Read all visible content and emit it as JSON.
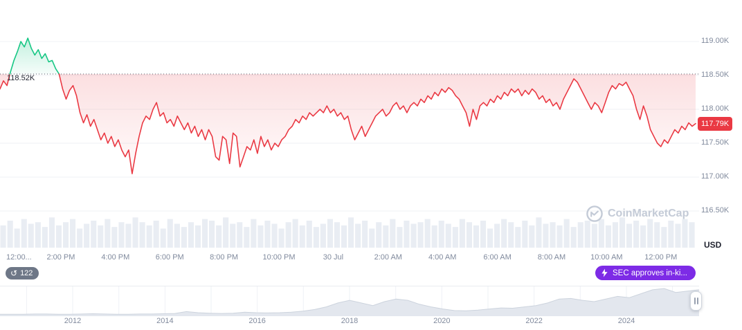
{
  "axis_unit": "USD",
  "watermark": {
    "text": "CoinMarketCap"
  },
  "badges": {
    "history_count": "122",
    "news_label": "SEC approves in-ki..."
  },
  "colors": {
    "up": "#16c784",
    "down": "#ea3943",
    "baseline": "#4c5160",
    "news_badge": "#7d2be6",
    "history_badge": "#6e7787",
    "watermark": "#c4cbd7",
    "axis_text": "#808a9d",
    "grid": "#eff2f5",
    "volume_bar": "#e9edf3"
  },
  "chart_data": {
    "type": "line",
    "ylim": [
      116.5,
      119.0
    ],
    "baseline": {
      "label": "118.52K",
      "value": 118.52
    },
    "current_price": {
      "label": "117.79K",
      "value": 117.79
    },
    "y_ticks": [
      {
        "label": "119.00K",
        "value": 119.0
      },
      {
        "label": "118.50K",
        "value": 118.5
      },
      {
        "label": "118.00K",
        "value": 118.0
      },
      {
        "label": "117.50K",
        "value": 117.5
      },
      {
        "label": "117.00K",
        "value": 117.0
      },
      {
        "label": "116.50K",
        "value": 116.5
      }
    ],
    "x_ticks": [
      {
        "label": "12:00...",
        "x": 0.009
      },
      {
        "label": "2:00 PM",
        "x": 0.0875
      },
      {
        "label": "4:00 PM",
        "x": 0.166
      },
      {
        "label": "6:00 PM",
        "x": 0.244
      },
      {
        "label": "8:00 PM",
        "x": 0.322
      },
      {
        "label": "10:00 PM",
        "x": 0.401
      },
      {
        "label": "30 Jul",
        "x": 0.479
      },
      {
        "label": "2:00 AM",
        "x": 0.558
      },
      {
        "label": "4:00 AM",
        "x": 0.636
      },
      {
        "label": "6:00 AM",
        "x": 0.715
      },
      {
        "label": "8:00 AM",
        "x": 0.793
      },
      {
        "label": "10:00 AM",
        "x": 0.872
      },
      {
        "label": "12:00 PM",
        "x": 0.95
      }
    ],
    "series": [
      118.3,
      118.42,
      118.35,
      118.55,
      118.72,
      118.85,
      119.0,
      118.92,
      119.05,
      118.9,
      118.8,
      118.88,
      118.75,
      118.82,
      118.7,
      118.72,
      118.6,
      118.52,
      118.3,
      118.15,
      118.28,
      118.35,
      118.2,
      117.95,
      117.8,
      117.92,
      117.75,
      117.85,
      117.7,
      117.55,
      117.65,
      117.5,
      117.6,
      117.45,
      117.55,
      117.4,
      117.3,
      117.4,
      117.05,
      117.35,
      117.6,
      117.8,
      117.9,
      117.85,
      118.0,
      118.1,
      117.9,
      117.95,
      117.8,
      117.85,
      117.75,
      117.9,
      117.8,
      117.7,
      117.8,
      117.65,
      117.75,
      117.6,
      117.7,
      117.55,
      117.7,
      117.6,
      117.3,
      117.25,
      117.6,
      117.55,
      117.2,
      117.65,
      117.6,
      117.15,
      117.3,
      117.45,
      117.4,
      117.55,
      117.35,
      117.6,
      117.45,
      117.55,
      117.4,
      117.5,
      117.45,
      117.55,
      117.6,
      117.7,
      117.75,
      117.85,
      117.8,
      117.9,
      117.85,
      117.95,
      117.9,
      117.95,
      118.0,
      117.95,
      118.05,
      117.95,
      118.0,
      117.9,
      117.95,
      117.85,
      117.9,
      117.7,
      117.55,
      117.65,
      117.75,
      117.6,
      117.7,
      117.8,
      117.9,
      117.95,
      118.0,
      117.9,
      117.95,
      118.05,
      118.1,
      118.0,
      118.05,
      117.95,
      118.05,
      118.1,
      118.05,
      118.15,
      118.1,
      118.2,
      118.15,
      118.25,
      118.2,
      118.3,
      118.25,
      118.32,
      118.28,
      118.2,
      118.15,
      118.05,
      117.95,
      117.75,
      118.0,
      117.85,
      118.05,
      118.1,
      118.05,
      118.15,
      118.1,
      118.2,
      118.15,
      118.25,
      118.2,
      118.3,
      118.25,
      118.3,
      118.2,
      118.28,
      118.22,
      118.3,
      118.25,
      118.15,
      118.2,
      118.1,
      118.15,
      118.05,
      118.1,
      118.0,
      118.15,
      118.25,
      118.35,
      118.45,
      118.4,
      118.3,
      118.2,
      118.1,
      118.0,
      118.1,
      118.05,
      117.95,
      118.1,
      118.25,
      118.35,
      118.3,
      118.38,
      118.35,
      118.4,
      118.3,
      118.2,
      118.0,
      117.85,
      118.05,
      117.9,
      117.7,
      117.6,
      117.5,
      117.45,
      117.55,
      117.5,
      117.6,
      117.7,
      117.65,
      117.75,
      117.7,
      117.8,
      117.75,
      117.79
    ],
    "volume": [
      0.7,
      0.85,
      0.6,
      0.9,
      0.75,
      0.8,
      0.65,
      0.95,
      0.7,
      0.8,
      0.9,
      0.6,
      0.75,
      0.85,
      0.7,
      0.9,
      0.65,
      0.8,
      0.75,
      0.95,
      0.8,
      0.7,
      0.85,
      0.6,
      0.9,
      0.75,
      0.65,
      0.8,
      0.7,
      0.9,
      0.85,
      0.7,
      0.95,
      0.75,
      0.8,
      0.65,
      0.9,
      0.7,
      0.85,
      0.75,
      0.6,
      0.8,
      0.9,
      0.7,
      0.85,
      0.65,
      0.75,
      0.9,
      0.8,
      0.7,
      0.95,
      0.75,
      0.85,
      0.6,
      0.8,
      0.7,
      0.9,
      0.65,
      0.85,
      0.75,
      0.8,
      0.9,
      0.7,
      0.85,
      0.75,
      0.65,
      0.9,
      0.8,
      0.7,
      0.85,
      0.6,
      0.75,
      0.9,
      0.8,
      0.65,
      0.85,
      0.7,
      0.95,
      0.75,
      0.8,
      0.7,
      0.9,
      0.65,
      0.8,
      0.85,
      0.75,
      0.9,
      0.7,
      0.8,
      0.95,
      0.75,
      0.85,
      0.7,
      0.9,
      0.8,
      0.65,
      0.85,
      0.75,
      0.9,
      0.8
    ],
    "navigator": {
      "years": [
        {
          "label": "2012",
          "x": 0.104
        },
        {
          "label": "2014",
          "x": 0.236
        },
        {
          "label": "2016",
          "x": 0.368
        },
        {
          "label": "2018",
          "x": 0.5
        },
        {
          "label": "2020",
          "x": 0.632
        },
        {
          "label": "2022",
          "x": 0.764
        },
        {
          "label": "2024",
          "x": 0.896
        }
      ],
      "series": [
        0.02,
        0.02,
        0.02,
        0.03,
        0.03,
        0.02,
        0.02,
        0.03,
        0.04,
        0.03,
        0.02,
        0.02,
        0.03,
        0.03,
        0.04,
        0.05,
        0.12,
        0.08,
        0.06,
        0.05,
        0.06,
        0.1,
        0.08,
        0.07,
        0.08,
        0.1,
        0.14,
        0.2,
        0.3,
        0.45,
        0.55,
        0.45,
        0.35,
        0.5,
        0.6,
        0.55,
        0.4,
        0.3,
        0.22,
        0.16,
        0.15,
        0.18,
        0.22,
        0.26,
        0.25,
        0.3,
        0.35,
        0.45,
        0.6,
        0.62,
        0.55,
        0.5,
        0.6,
        0.7,
        0.65,
        0.8,
        0.95,
        1.0,
        0.85,
        0.9,
        0.95
      ]
    }
  }
}
